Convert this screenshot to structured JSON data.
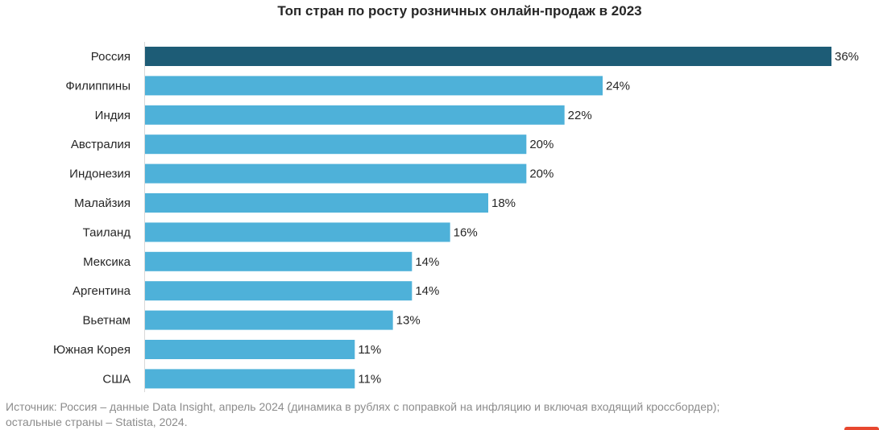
{
  "chart_data": {
    "type": "bar",
    "orientation": "horizontal",
    "title": "Топ стран по росту розничных онлайн-продаж в 2023",
    "categories": [
      "Россия",
      "Филиппины",
      "Индия",
      "Австралия",
      "Индонезия",
      "Малайзия",
      "Таиланд",
      "Мексика",
      "Аргентина",
      "Вьетнам",
      "Южная Корея",
      "США"
    ],
    "values": [
      36,
      24,
      22,
      20,
      20,
      18,
      16,
      14,
      14,
      13,
      11,
      11
    ],
    "labels": [
      "36%",
      "24%",
      "22%",
      "20%",
      "20%",
      "18%",
      "16%",
      "14%",
      "14%",
      "13%",
      "11%",
      "11%"
    ],
    "xlim": [
      0,
      36
    ],
    "grid": false,
    "legend": "none",
    "colors": {
      "highlight": "#1d5c76",
      "bar": "#4eb1d9"
    },
    "highlight_index": 0
  },
  "source": {
    "line1": "Источник: Россия – данные Data Insight, апрель 2024 (динамика в рублях с поправкой на инфляцию и включая входящий кроссбордер);",
    "line2": "остальные страны – Statista, 2024."
  }
}
